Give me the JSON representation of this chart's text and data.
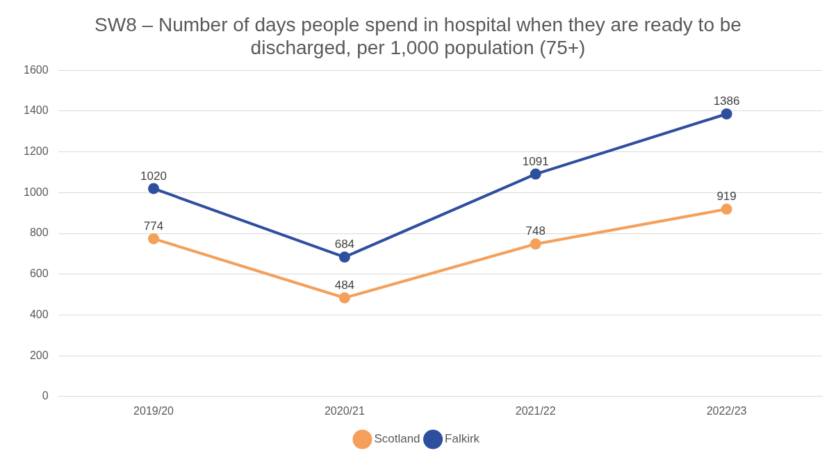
{
  "chart_data": {
    "type": "line",
    "title": "SW8 – Number of days people spend in hospital when they are ready to be discharged, per 1,000 population (75+)",
    "categories": [
      "2019/20",
      "2020/21",
      "2021/22",
      "2022/23"
    ],
    "series": [
      {
        "name": "Scotland",
        "color": "#f4a05a",
        "values": [
          774,
          484,
          748,
          919
        ]
      },
      {
        "name": "Falkirk",
        "color": "#2e4f9e",
        "values": [
          1020,
          684,
          1091,
          1386
        ]
      }
    ],
    "ylim": [
      0,
      1600
    ],
    "yticks": [
      0,
      200,
      400,
      600,
      800,
      1000,
      1200,
      1400,
      1600
    ],
    "grid": "y",
    "legend": "bottom",
    "marker": "circle",
    "line_style": "solid",
    "data_labels": true
  }
}
